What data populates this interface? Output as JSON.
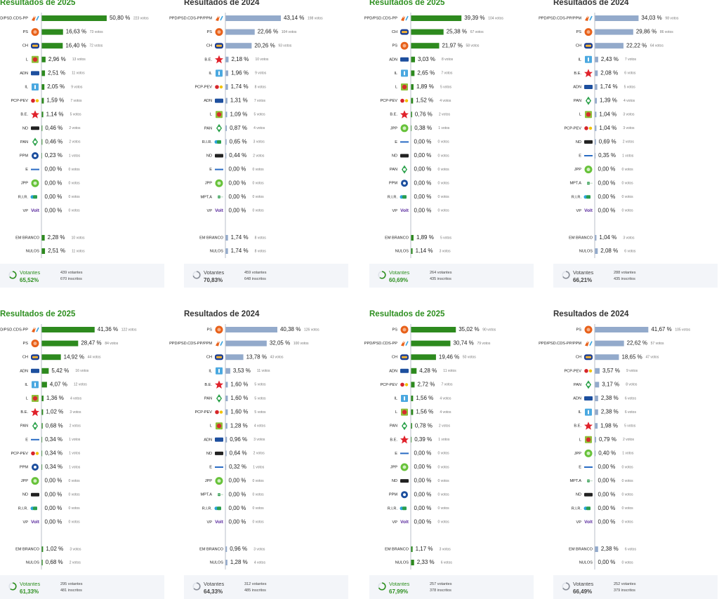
{
  "colors": {
    "bar_2025": "#2d8a1e",
    "bar_2024": "#93aacb",
    "title_2025": "#2d8f1f",
    "title_2024": "#333333",
    "axis": "#9aa4b2"
  },
  "icons": {
    "psd": "psd-arrow-logo-icon",
    "ps": "ps-rose-logo-icon",
    "ch": "chega-logo-icon",
    "l": "livre-logo-icon",
    "adn": "adn-logo-icon",
    "il": "iniciativa-liberal-logo-icon",
    "pcp": "cdu-logo-icon",
    "be": "bloco-star-logo-icon",
    "nd": "nd-logo-icon",
    "pan": "pan-logo-icon",
    "ppm": "ppm-logo-icon",
    "e": "ergue-te-logo-icon",
    "jpp": "jpp-logo-icon",
    "rir": "rir-logo-icon",
    "vp": "volt-logo-icon",
    "mpt": "mpt-logo-icon"
  },
  "panels": [
    {
      "title": "Resultados de 2025",
      "year": "2025",
      "votantes_label": "Votantes",
      "votantes_pct": "65,52%",
      "votantes": "439 votantes",
      "inscritos": "670 inscritos",
      "chart_data": {
        "type": "bar",
        "categories": [
          "PPD/PSD.CDS-PP",
          "PS",
          "CH",
          "L",
          "ADN",
          "IL",
          "PCP-PEV",
          "B.E.",
          "ND",
          "PAN",
          "PPM",
          "E",
          "JPP",
          "R.I.R.",
          "VP"
        ],
        "values": [
          50.8,
          16.63,
          16.4,
          2.96,
          2.51,
          2.05,
          1.59,
          1.14,
          0.46,
          0.46,
          0.23,
          0.0,
          0.0,
          0.0,
          0.0
        ],
        "pct_labels": [
          "50,80 %",
          "16,63 %",
          "16,40 %",
          "2,96 %",
          "2,51 %",
          "2,05 %",
          "1,59 %",
          "1,14 %",
          "0,46 %",
          "0,46 %",
          "0,23 %",
          "0,00 %",
          "0,00 %",
          "0,00 %",
          "0,00 %"
        ],
        "vote_labels": [
          "223 votos",
          "73 votos",
          "72 votos",
          "13 votos",
          "11 votos",
          "9 votos",
          "7 votos",
          "5 votos",
          "2 votos",
          "2 votos",
          "1 votos",
          "0 votos",
          "0 votos",
          "0 votos",
          "0 votos"
        ],
        "icons": [
          "psd",
          "ps",
          "ch",
          "l",
          "adn",
          "il",
          "pcp",
          "be",
          "nd",
          "pan",
          "ppm",
          "e",
          "jpp",
          "rir",
          "vp"
        ],
        "extra": [
          {
            "label": "EM BRANCO",
            "value": 2.28,
            "pct": "2,28 %",
            "votes": "10 votos"
          },
          {
            "label": "NULOS",
            "value": 2.51,
            "pct": "2,51 %",
            "votes": "11 votos"
          }
        ]
      }
    },
    {
      "title": "Resultados de 2024",
      "year": "2024",
      "votantes_label": "Votantes",
      "votantes_pct": "70,83%",
      "votantes": "459 votantes",
      "inscritos": "648 inscritos",
      "chart_data": {
        "type": "bar",
        "categories": [
          "PPD/PSD.CDS-PP/PPM",
          "PS",
          "CH",
          "B.E.",
          "IL",
          "PCP-PEV",
          "ADN",
          "L",
          "PAN",
          "R.I.R.",
          "ND",
          "E",
          "JPP",
          "MPT.A",
          "VP"
        ],
        "values": [
          43.14,
          22.66,
          20.26,
          2.18,
          1.96,
          1.74,
          1.31,
          1.09,
          0.87,
          0.65,
          0.44,
          0.0,
          0.0,
          0.0,
          0.0
        ],
        "pct_labels": [
          "43,14 %",
          "22,66 %",
          "20,26 %",
          "2,18 %",
          "1,96 %",
          "1,74 %",
          "1,31 %",
          "1,09 %",
          "0,87 %",
          "0,65 %",
          "0,44 %",
          "0,00 %",
          "0,00 %",
          "0,00 %",
          "0,00 %"
        ],
        "vote_labels": [
          "198 votos",
          "104 votos",
          "93 votos",
          "10 votos",
          "9 votos",
          "8 votos",
          "7 votos",
          "5 votos",
          "4 votos",
          "3 votos",
          "2 votos",
          "0 votos",
          "0 votos",
          "0 votos",
          "0 votos"
        ],
        "icons": [
          "psd",
          "ps",
          "ch",
          "be",
          "il",
          "pcp",
          "adn",
          "l",
          "pan",
          "rir",
          "nd",
          "e",
          "jpp",
          "mpt",
          "vp"
        ],
        "extra": [
          {
            "label": "EM BRANCO",
            "value": 1.74,
            "pct": "1,74 %",
            "votes": "8 votos"
          },
          {
            "label": "NULOS",
            "value": 1.74,
            "pct": "1,74 %",
            "votes": "8 votos"
          }
        ]
      }
    },
    {
      "title": "Resultados de 2025",
      "year": "2025",
      "votantes_label": "Votantes",
      "votantes_pct": "60,69%",
      "votantes": "264 votantes",
      "inscritos": "435 inscritos",
      "chart_data": {
        "type": "bar",
        "categories": [
          "PPD/PSD.CDS-PP",
          "CH",
          "PS",
          "ADN",
          "IL",
          "L",
          "PCP-PEV",
          "B.E.",
          "JPP",
          "E",
          "ND",
          "PAN",
          "PPM",
          "R.I.R.",
          "VP"
        ],
        "values": [
          39.39,
          25.38,
          21.97,
          3.03,
          2.65,
          1.89,
          1.52,
          0.76,
          0.38,
          0.0,
          0.0,
          0.0,
          0.0,
          0.0,
          0.0
        ],
        "pct_labels": [
          "39,39 %",
          "25,38 %",
          "21,97 %",
          "3,03 %",
          "2,65 %",
          "1,89 %",
          "1,52 %",
          "0,76 %",
          "0,38 %",
          "0,00 %",
          "0,00 %",
          "0,00 %",
          "0,00 %",
          "0,00 %",
          "0,00 %"
        ],
        "vote_labels": [
          "104 votos",
          "67 votos",
          "58 votos",
          "8 votos",
          "7 votos",
          "5 votos",
          "4 votos",
          "2 votos",
          "1 votos",
          "0 votos",
          "0 votos",
          "0 votos",
          "0 votos",
          "0 votos",
          "0 votos"
        ],
        "icons": [
          "psd",
          "ch",
          "ps",
          "adn",
          "il",
          "l",
          "pcp",
          "be",
          "jpp",
          "e",
          "nd",
          "pan",
          "ppm",
          "rir",
          "vp"
        ],
        "extra": [
          {
            "label": "EM BRANCO",
            "value": 1.89,
            "pct": "1,89 %",
            "votes": "5 votos"
          },
          {
            "label": "NULOS",
            "value": 1.14,
            "pct": "1,14 %",
            "votes": "3 votos"
          }
        ]
      }
    },
    {
      "title": "Resultados de 2024",
      "year": "2024",
      "votantes_label": "Votantes",
      "votantes_pct": "66,21%",
      "votantes": "288 votantes",
      "inscritos": "435 inscritos",
      "chart_data": {
        "type": "bar",
        "categories": [
          "PPD/PSD.CDS-PP/PPM",
          "PS",
          "CH",
          "IL",
          "B.E.",
          "ADN",
          "PAN",
          "L",
          "PCP-PEV",
          "ND",
          "E",
          "JPP",
          "MPT.A",
          "R.I.R.",
          "VP"
        ],
        "values": [
          34.03,
          29.86,
          22.22,
          2.43,
          2.08,
          1.74,
          1.39,
          1.04,
          1.04,
          0.69,
          0.35,
          0.0,
          0.0,
          0.0,
          0.0
        ],
        "pct_labels": [
          "34,03 %",
          "29,86 %",
          "22,22 %",
          "2,43 %",
          "2,08 %",
          "1,74 %",
          "1,39 %",
          "1,04 %",
          "1,04 %",
          "0,69 %",
          "0,35 %",
          "0,00 %",
          "0,00 %",
          "0,00 %",
          "0,00 %"
        ],
        "vote_labels": [
          "98 votos",
          "86 votos",
          "64 votos",
          "7 votos",
          "6 votos",
          "5 votos",
          "4 votos",
          "3 votos",
          "3 votos",
          "2 votos",
          "1 votos",
          "0 votos",
          "0 votos",
          "0 votos",
          "0 votos"
        ],
        "icons": [
          "psd",
          "ps",
          "ch",
          "il",
          "be",
          "adn",
          "pan",
          "l",
          "pcp",
          "nd",
          "e",
          "jpp",
          "mpt",
          "rir",
          "vp"
        ],
        "extra": [
          {
            "label": "EM BRANCO",
            "value": 1.04,
            "pct": "1,04 %",
            "votes": "3 votos"
          },
          {
            "label": "NULOS",
            "value": 2.08,
            "pct": "2,08 %",
            "votes": "6 votos"
          }
        ]
      }
    },
    {
      "title": "Resultados de 2025",
      "year": "2025",
      "votantes_label": "Votantes",
      "votantes_pct": "61,33%",
      "votantes": "295 votantes",
      "inscritos": "481 inscritos",
      "chart_data": {
        "type": "bar",
        "categories": [
          "PPD/PSD.CDS-PP",
          "PS",
          "CH",
          "ADN",
          "IL",
          "L",
          "B.E.",
          "PAN",
          "E",
          "PCP-PEV",
          "PPM",
          "JPP",
          "ND",
          "R.I.R.",
          "VP"
        ],
        "values": [
          41.36,
          28.47,
          14.92,
          5.42,
          4.07,
          1.36,
          1.02,
          0.68,
          0.34,
          0.34,
          0.34,
          0.0,
          0.0,
          0.0,
          0.0
        ],
        "pct_labels": [
          "41,36 %",
          "28,47 %",
          "14,92 %",
          "5,42 %",
          "4,07 %",
          "1,36 %",
          "1,02 %",
          "0,68 %",
          "0,34 %",
          "0,34 %",
          "0,34 %",
          "0,00 %",
          "0,00 %",
          "0,00 %",
          "0,00 %"
        ],
        "vote_labels": [
          "122 votos",
          "84 votos",
          "44 votos",
          "16 votos",
          "12 votos",
          "4 votos",
          "3 votos",
          "2 votos",
          "1 votos",
          "1 votos",
          "1 votos",
          "0 votos",
          "0 votos",
          "0 votos",
          "0 votos"
        ],
        "icons": [
          "psd",
          "ps",
          "ch",
          "adn",
          "il",
          "l",
          "be",
          "pan",
          "e",
          "pcp",
          "ppm",
          "jpp",
          "nd",
          "rir",
          "vp"
        ],
        "extra": [
          {
            "label": "EM BRANCO",
            "value": 1.02,
            "pct": "1,02 %",
            "votes": "3 votos"
          },
          {
            "label": "NULOS",
            "value": 0.68,
            "pct": "0,68 %",
            "votes": "2 votos"
          }
        ]
      }
    },
    {
      "title": "Resultados de 2024",
      "year": "2024",
      "votantes_label": "Votantes",
      "votantes_pct": "64,33%",
      "votantes": "312 votantes",
      "inscritos": "485 inscritos",
      "chart_data": {
        "type": "bar",
        "categories": [
          "PS",
          "PPD/PSD.CDS-PP/PPM",
          "CH",
          "IL",
          "B.E.",
          "PAN",
          "PCP-PEV",
          "L",
          "ADN",
          "ND",
          "E",
          "JPP",
          "MPT.A",
          "R.I.R.",
          "VP"
        ],
        "values": [
          40.38,
          32.05,
          13.78,
          3.53,
          1.6,
          1.6,
          1.6,
          1.28,
          0.96,
          0.64,
          0.32,
          0.0,
          0.0,
          0.0,
          0.0
        ],
        "pct_labels": [
          "40,38 %",
          "32,05 %",
          "13,78 %",
          "3,53 %",
          "1,60 %",
          "1,60 %",
          "1,60 %",
          "1,28 %",
          "0,96 %",
          "0,64 %",
          "0,32 %",
          "0,00 %",
          "0,00 %",
          "0,00 %",
          "0,00 %"
        ],
        "vote_labels": [
          "126 votos",
          "100 votos",
          "43 votos",
          "11 votos",
          "5 votos",
          "5 votos",
          "5 votos",
          "4 votos",
          "3 votos",
          "2 votos",
          "1 votos",
          "0 votos",
          "0 votos",
          "0 votos",
          "0 votos"
        ],
        "icons": [
          "ps",
          "psd",
          "ch",
          "il",
          "be",
          "pan",
          "pcp",
          "l",
          "adn",
          "nd",
          "e",
          "jpp",
          "mpt",
          "rir",
          "vp"
        ],
        "extra": [
          {
            "label": "EM BRANCO",
            "value": 0.96,
            "pct": "0,96 %",
            "votes": "3 votos"
          },
          {
            "label": "NULOS",
            "value": 1.28,
            "pct": "1,28 %",
            "votes": "4 votos"
          }
        ]
      }
    },
    {
      "title": "Resultados de 2025",
      "year": "2025",
      "votantes_label": "Votantes",
      "votantes_pct": "67,99%",
      "votantes": "257 votantes",
      "inscritos": "378 inscritos",
      "chart_data": {
        "type": "bar",
        "categories": [
          "PS",
          "PPD/PSD.CDS-PP",
          "CH",
          "ADN",
          "PCP-PEV",
          "IL",
          "L",
          "PAN",
          "B.E.",
          "E",
          "JPP",
          "ND",
          "PPM",
          "R.I.R.",
          "VP"
        ],
        "values": [
          35.02,
          30.74,
          19.46,
          4.28,
          2.72,
          1.56,
          1.56,
          0.78,
          0.39,
          0.0,
          0.0,
          0.0,
          0.0,
          0.0,
          0.0
        ],
        "pct_labels": [
          "35,02 %",
          "30,74 %",
          "19,46 %",
          "4,28 %",
          "2,72 %",
          "1,56 %",
          "1,56 %",
          "0,78 %",
          "0,39 %",
          "0,00 %",
          "0,00 %",
          "0,00 %",
          "0,00 %",
          "0,00 %",
          "0,00 %"
        ],
        "vote_labels": [
          "90 votos",
          "79 votos",
          "50 votos",
          "11 votos",
          "7 votos",
          "4 votos",
          "4 votos",
          "2 votos",
          "1 votos",
          "0 votos",
          "0 votos",
          "0 votos",
          "0 votos",
          "0 votos",
          "0 votos"
        ],
        "icons": [
          "ps",
          "psd",
          "ch",
          "adn",
          "pcp",
          "il",
          "l",
          "pan",
          "be",
          "e",
          "jpp",
          "nd",
          "ppm",
          "rir",
          "vp"
        ],
        "extra": [
          {
            "label": "EM BRANCO",
            "value": 1.17,
            "pct": "1,17 %",
            "votes": "3 votos"
          },
          {
            "label": "NULOS",
            "value": 2.33,
            "pct": "2,33 %",
            "votes": "6 votos"
          }
        ]
      }
    },
    {
      "title": "Resultados de 2024",
      "year": "2024",
      "votantes_label": "Votantes",
      "votantes_pct": "66,49%",
      "votantes": "252 votantes",
      "inscritos": "379 inscritos",
      "chart_data": {
        "type": "bar",
        "categories": [
          "PS",
          "PPD/PSD.CDS-PP/PPM",
          "CH",
          "PCP-PEV",
          "PAN",
          "ADN",
          "IL",
          "B.E.",
          "L",
          "JPP",
          "E",
          "MPT.A",
          "ND",
          "R.I.R.",
          "VP"
        ],
        "values": [
          41.67,
          22.62,
          18.65,
          3.57,
          3.17,
          2.38,
          2.38,
          1.98,
          0.79,
          0.4,
          0.0,
          0.0,
          0.0,
          0.0,
          0.0
        ],
        "pct_labels": [
          "41,67 %",
          "22,62 %",
          "18,65 %",
          "3,57 %",
          "3,17 %",
          "2,38 %",
          "2,38 %",
          "1,98 %",
          "0,79 %",
          "0,40 %",
          "0,00 %",
          "0,00 %",
          "0,00 %",
          "0,00 %",
          "0,00 %"
        ],
        "vote_labels": [
          "105 votos",
          "57 votos",
          "47 votos",
          "9 votos",
          "8 votos",
          "6 votos",
          "6 votos",
          "5 votos",
          "2 votos",
          "1 votos",
          "0 votos",
          "0 votos",
          "0 votos",
          "0 votos",
          "0 votos"
        ],
        "icons": [
          "ps",
          "psd",
          "ch",
          "pcp",
          "pan",
          "adn",
          "il",
          "be",
          "l",
          "jpp",
          "e",
          "mpt",
          "nd",
          "rir",
          "vp"
        ],
        "extra": [
          {
            "label": "EM BRANCO",
            "value": 2.38,
            "pct": "2,38 %",
            "votes": "6 votos"
          },
          {
            "label": "NULOS",
            "value": 0.0,
            "pct": "0,00 %",
            "votes": "0 votos"
          }
        ]
      }
    }
  ]
}
